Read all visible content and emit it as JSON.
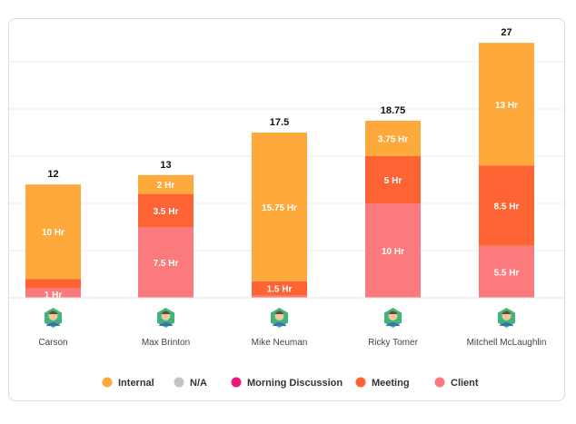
{
  "chart_data": {
    "type": "bar",
    "stacked": true,
    "categories": [
      "Carson",
      "Max Brinton",
      "Mike Neuman",
      "Ricky Tomer",
      "Mitchell McLaughlin"
    ],
    "totals": [
      "12",
      "13",
      "17.5",
      "18.75",
      "27"
    ],
    "series": [
      {
        "name": "Client",
        "color": "#fb7a7e",
        "values": [
          1,
          7.5,
          0.25,
          10,
          5.5
        ],
        "labels": [
          "1 Hr",
          "7.5 Hr",
          "",
          "10 Hr",
          "5.5 Hr"
        ]
      },
      {
        "name": "Meeting",
        "color": "#fe6333",
        "values": [
          1,
          3.5,
          1.5,
          5,
          8.5
        ],
        "labels": [
          "",
          "3.5 Hr",
          "1.5 Hr",
          "5 Hr",
          "8.5 Hr"
        ]
      },
      {
        "name": "Morning Discussion",
        "color": "#f0147e",
        "values": [
          0,
          0,
          0,
          0,
          0
        ],
        "labels": [
          "",
          "",
          "",
          "",
          ""
        ]
      },
      {
        "name": "N/A",
        "color": "#c4c4c4",
        "values": [
          0,
          0,
          0,
          0,
          0
        ],
        "labels": [
          "",
          "",
          "",
          "",
          ""
        ]
      },
      {
        "name": "Internal",
        "color": "#fda93b",
        "values": [
          10,
          2,
          15.75,
          3.75,
          13
        ],
        "labels": [
          "10 Hr",
          "2 Hr",
          "15.75 Hr",
          "3.75 Hr",
          "13 Hr"
        ]
      }
    ],
    "legend": [
      "Internal",
      "N/A",
      "Morning Discussion",
      "Meeting",
      "Client"
    ],
    "legend_placement": "bottom-center",
    "ylim": [
      0,
      30
    ],
    "grid": true,
    "avatar_icons": [
      "avatar-icon",
      "avatar-icon",
      "avatar-icon",
      "avatar-icon",
      "avatar-icon"
    ]
  }
}
